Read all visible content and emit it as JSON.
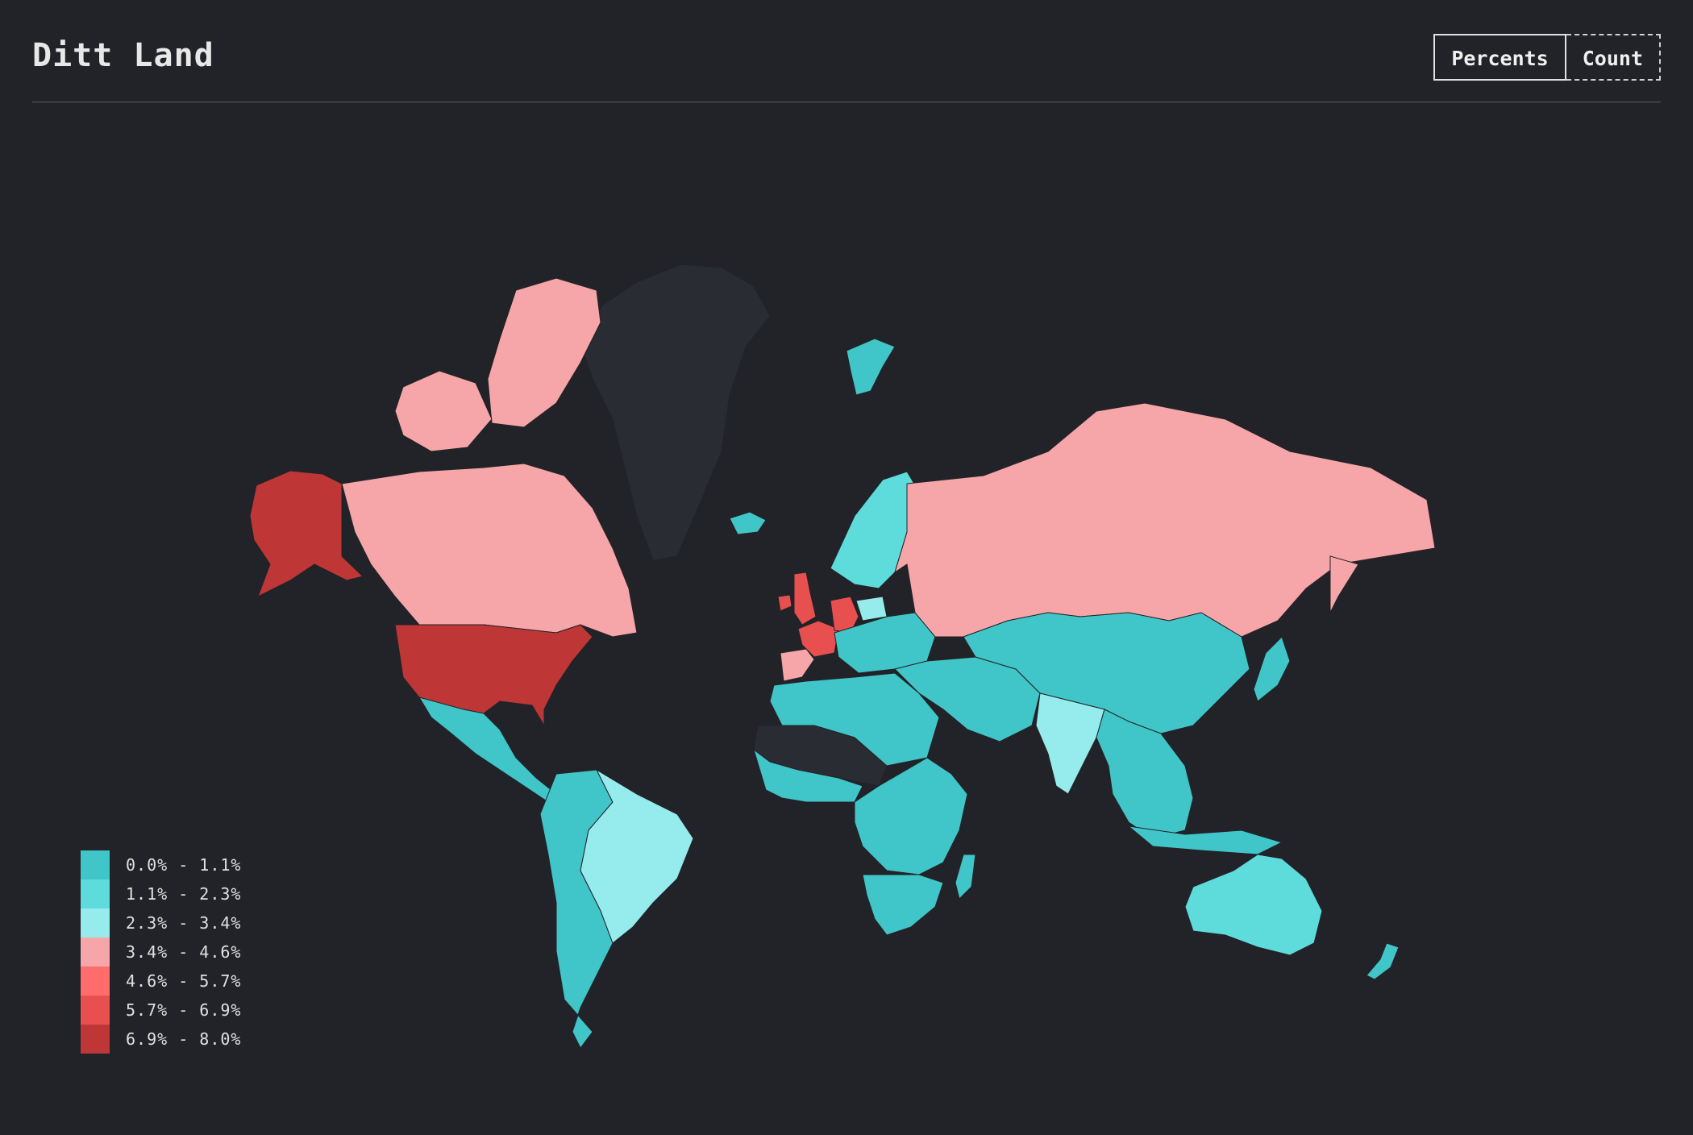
{
  "header": {
    "title": "Ditt Land",
    "toggle": {
      "percents_label": "Percents",
      "count_label": "Count",
      "active": "percents"
    }
  },
  "colors": {
    "background": "#222328",
    "no_data": "#2a2c33",
    "bin_1": "#40c6c8",
    "bin_2": "#5edcdc",
    "bin_3": "#96ecec",
    "bin_4": "#f6a6a8",
    "bin_5": "#ff6c6c",
    "bin_6": "#e85050",
    "bin_7": "#bf3636"
  },
  "legend": [
    {
      "label": "0.0% - 1.1%",
      "color": "#40c6c8"
    },
    {
      "label": "1.1% - 2.3%",
      "color": "#5edcdc"
    },
    {
      "label": "2.3% - 3.4%",
      "color": "#96ecec"
    },
    {
      "label": "3.4% - 4.6%",
      "color": "#f6a6a8"
    },
    {
      "label": "4.6% - 5.7%",
      "color": "#ff6c6c"
    },
    {
      "label": "5.7% - 6.9%",
      "color": "#e85050"
    },
    {
      "label": "6.9% - 8.0%",
      "color": "#bf3636"
    }
  ],
  "regions": [
    {
      "name": "usa",
      "bin": 7
    },
    {
      "name": "alaska",
      "bin": 7
    },
    {
      "name": "canada",
      "bin": 4
    },
    {
      "name": "canadian-arctic",
      "bin": 4
    },
    {
      "name": "greenland",
      "bin": 0
    },
    {
      "name": "mexico-central-america",
      "bin": 1
    },
    {
      "name": "south-america-west",
      "bin": 1
    },
    {
      "name": "brazil",
      "bin": 3
    },
    {
      "name": "uk",
      "bin": 6
    },
    {
      "name": "ireland",
      "bin": 6
    },
    {
      "name": "france",
      "bin": 6
    },
    {
      "name": "germany",
      "bin": 6
    },
    {
      "name": "spain",
      "bin": 4
    },
    {
      "name": "poland",
      "bin": 3
    },
    {
      "name": "scandinavia",
      "bin": 2
    },
    {
      "name": "iceland",
      "bin": 1
    },
    {
      "name": "svalbard",
      "bin": 1
    },
    {
      "name": "europe-rest",
      "bin": 1
    },
    {
      "name": "russia",
      "bin": 4
    },
    {
      "name": "china-central-asia",
      "bin": 1
    },
    {
      "name": "middle-east",
      "bin": 1
    },
    {
      "name": "india",
      "bin": 3
    },
    {
      "name": "southeast-asia",
      "bin": 1
    },
    {
      "name": "japan",
      "bin": 1
    },
    {
      "name": "north-africa",
      "bin": 1
    },
    {
      "name": "west-africa",
      "bin": 1
    },
    {
      "name": "sahel",
      "bin": 0
    },
    {
      "name": "central-africa",
      "bin": 1
    },
    {
      "name": "southern-africa",
      "bin": 1
    },
    {
      "name": "madagascar",
      "bin": 1
    },
    {
      "name": "australia",
      "bin": 2
    },
    {
      "name": "new-zealand",
      "bin": 1
    }
  ]
}
